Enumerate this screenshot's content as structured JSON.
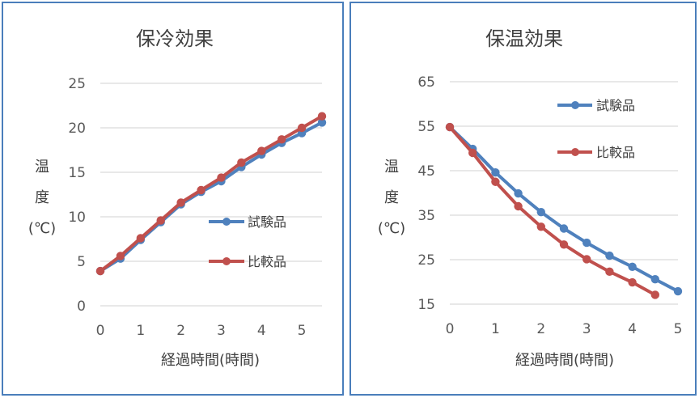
{
  "chart_data": [
    {
      "type": "line",
      "title": "保冷効果",
      "xlabel": "経過時間(時間)",
      "ylabel": [
        "温",
        "度",
        "(℃)"
      ],
      "xlim": [
        0,
        5.5
      ],
      "ylim": [
        0,
        25
      ],
      "xticks": [
        0,
        1,
        2,
        3,
        4,
        5
      ],
      "yticks": [
        0,
        5,
        10,
        15,
        20,
        25
      ],
      "grid": true,
      "legend_position": "middle-right",
      "series": [
        {
          "name": "試験品",
          "color": "#4f81bd",
          "x": [
            0,
            0.5,
            1,
            1.5,
            2,
            2.5,
            3,
            3.5,
            4,
            4.5,
            5,
            5.5
          ],
          "y": [
            3.9,
            5.3,
            7.4,
            9.4,
            11.4,
            12.8,
            14.0,
            15.6,
            17.0,
            18.3,
            19.4,
            20.6
          ]
        },
        {
          "name": "比較品",
          "color": "#c0504d",
          "x": [
            0,
            0.5,
            1,
            1.5,
            2,
            2.5,
            3,
            3.5,
            4,
            4.5,
            5,
            5.5
          ],
          "y": [
            3.9,
            5.6,
            7.6,
            9.6,
            11.6,
            13.0,
            14.4,
            16.1,
            17.4,
            18.7,
            20.0,
            21.3
          ]
        }
      ]
    },
    {
      "type": "line",
      "title": "保温効果",
      "xlabel": "経過時間(時間)",
      "ylabel": [
        "温",
        "度",
        "(℃)"
      ],
      "xlim": [
        0,
        5
      ],
      "ylim": [
        15,
        65
      ],
      "xticks": [
        0,
        1,
        2,
        3,
        4,
        5
      ],
      "yticks": [
        15,
        25,
        35,
        45,
        55,
        65
      ],
      "grid": true,
      "legend_position": "top-right",
      "series": [
        {
          "name": "試験品",
          "color": "#4f81bd",
          "x": [
            0,
            0.5,
            1,
            1.5,
            2,
            2.5,
            3,
            3.5,
            4,
            4.5,
            5
          ],
          "y": [
            54.8,
            49.9,
            44.6,
            39.9,
            35.7,
            32.0,
            28.8,
            25.9,
            23.4,
            20.6,
            17.9
          ]
        },
        {
          "name": "比較品",
          "color": "#c0504d",
          "x": [
            0,
            0.5,
            1,
            1.5,
            2,
            2.5,
            3,
            3.5,
            4,
            4.5
          ],
          "y": [
            54.8,
            49.0,
            42.5,
            37.0,
            32.4,
            28.4,
            25.1,
            22.3,
            19.9,
            17.1
          ]
        }
      ]
    }
  ]
}
